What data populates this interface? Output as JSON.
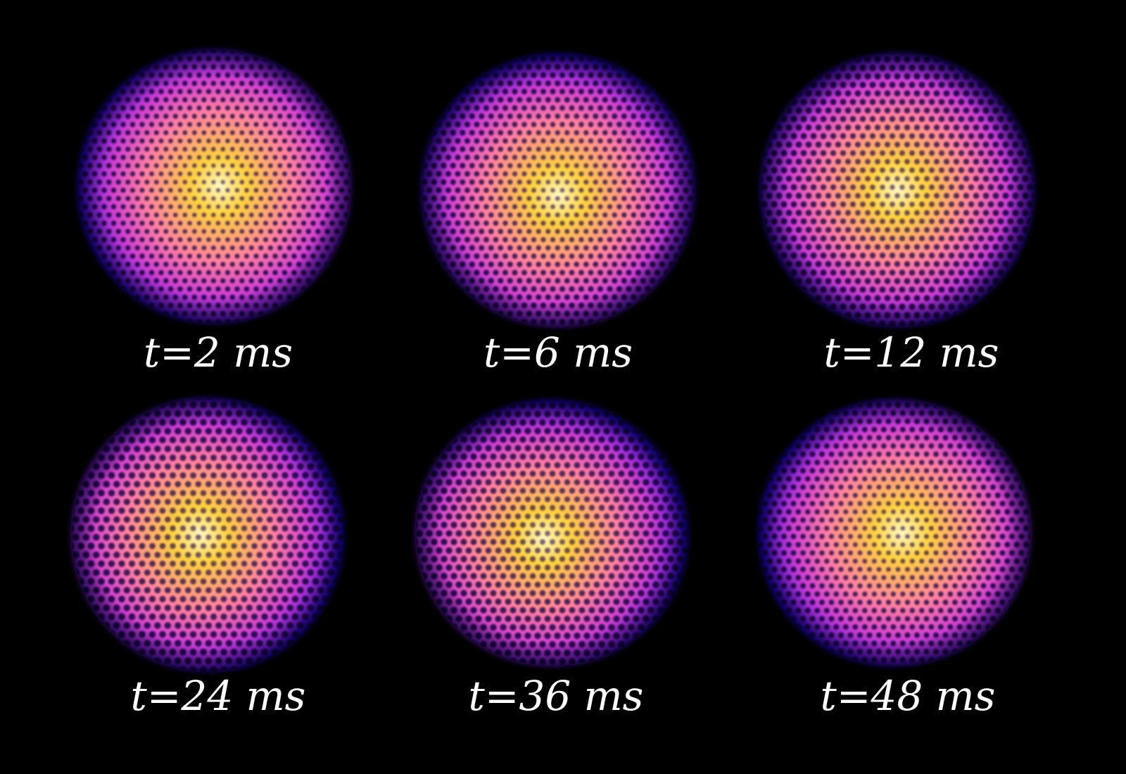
{
  "figure": {
    "background_color": "#000000",
    "colormap": [
      "#1a00c8",
      "#7a1fd6",
      "#d040d0",
      "#ff80a0",
      "#ffd040",
      "#fff6c0"
    ],
    "panels": [
      {
        "label": "t=2 ms"
      },
      {
        "label": "t=6 ms"
      },
      {
        "label": "t=12 ms"
      },
      {
        "label": "t=24 ms"
      },
      {
        "label": "t=36 ms"
      },
      {
        "label": "t=48 ms"
      }
    ]
  }
}
